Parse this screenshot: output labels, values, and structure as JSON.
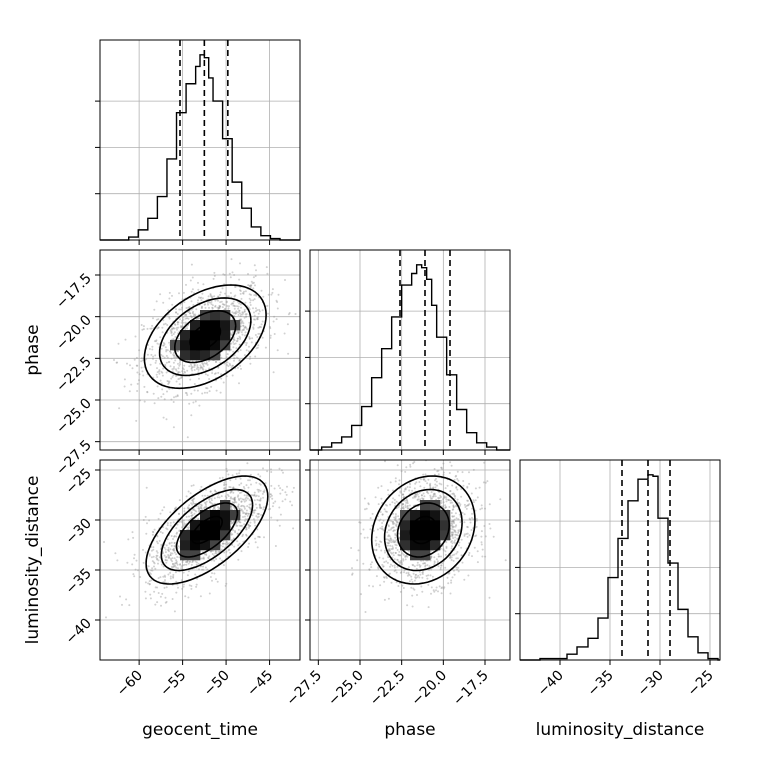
{
  "chart_data": {
    "type": "corner",
    "parameters": [
      {
        "key": "geocent_time",
        "label": "geocent_time",
        "range": [
          -64.5,
          -41.5
        ],
        "ticks": [
          -60,
          -55,
          -50,
          -45
        ],
        "tick_labels": [
          "−60",
          "−55",
          "−50",
          "−45"
        ],
        "quantiles": [
          -55.3,
          -52.5,
          -49.8
        ],
        "histogram": {
          "bin_edges": [
            -61.2,
            -60.1,
            -59.0,
            -57.9,
            -56.8,
            -55.7,
            -54.6,
            -53.5,
            -53.0,
            -52.5,
            -52.0,
            -51.5,
            -50.4,
            -49.3,
            -48.2,
            -47.1,
            -46.0,
            -44.9,
            -43.8
          ],
          "counts": [
            2,
            7,
            15,
            30,
            56,
            88,
            108,
            120,
            128,
            126,
            112,
            96,
            70,
            40,
            22,
            9,
            3,
            1
          ],
          "max": 128
        }
      },
      {
        "key": "phase",
        "label": "phase",
        "range": [
          -28.0,
          -16.0
        ],
        "ticks": [
          -27.5,
          -25.0,
          -22.5,
          -20.0,
          -17.5
        ],
        "tick_labels": [
          "−27.5",
          "−25.0",
          "−22.5",
          "−20.0",
          "−17.5"
        ],
        "quantiles": [
          -22.6,
          -21.1,
          -19.6
        ],
        "histogram": {
          "bin_edges": [
            -27.3,
            -26.7,
            -26.1,
            -25.5,
            -24.9,
            -24.3,
            -23.7,
            -23.1,
            -22.5,
            -21.9,
            -21.6,
            -21.3,
            -21.0,
            -20.7,
            -20.4,
            -19.8,
            -19.2,
            -18.6,
            -18.0,
            -17.4,
            -16.8
          ],
          "counts": [
            2,
            5,
            9,
            17,
            30,
            50,
            70,
            92,
            114,
            122,
            128,
            126,
            118,
            100,
            78,
            52,
            28,
            12,
            5,
            2
          ],
          "max": 128
        }
      },
      {
        "key": "luminosity_distance",
        "label": "luminosity_distance",
        "range": [
          -44.0,
          -24.0
        ],
        "ticks": [
          -40,
          -35,
          -30,
          -25
        ],
        "tick_labels": [
          "−40",
          "−35",
          "−30",
          "−25"
        ],
        "quantiles": [
          -33.8,
          -31.2,
          -29.0
        ],
        "histogram": {
          "bin_edges": [
            -42.0,
            -39.3,
            -38.3,
            -37.2,
            -36.2,
            -35.2,
            -34.2,
            -33.2,
            -32.2,
            -31.2,
            -30.7,
            -30.2,
            -29.2,
            -28.2,
            -27.2,
            -26.2,
            -25.2,
            -24.2
          ],
          "counts": [
            1,
            4,
            9,
            15,
            29,
            57,
            84,
            110,
            125,
            128,
            127,
            98,
            67,
            35,
            16,
            5,
            1
          ],
          "max": 128
        }
      }
    ],
    "pairs": [
      {
        "x": "geocent_time",
        "y": "phase",
        "mean": [
          -52.4,
          -21.2
        ],
        "sd": [
          3.5,
          1.55
        ],
        "corr": 0.42
      },
      {
        "x": "geocent_time",
        "y": "luminosity_distance",
        "mean": [
          -52.2,
          -31.0
        ],
        "sd": [
          3.5,
          2.7
        ],
        "corr": 0.62
      },
      {
        "x": "phase",
        "y": "luminosity_distance",
        "mean": [
          -21.2,
          -31.0
        ],
        "sd": [
          1.55,
          2.7
        ],
        "corr": 0.18
      }
    ],
    "contour_levels_sigma": [
      0.5,
      1.0,
      1.5,
      2.0
    ],
    "grid": true,
    "colors": {
      "line": "#000000",
      "grid": "#b0b0b0",
      "scatter": "#9a9a9a"
    }
  }
}
